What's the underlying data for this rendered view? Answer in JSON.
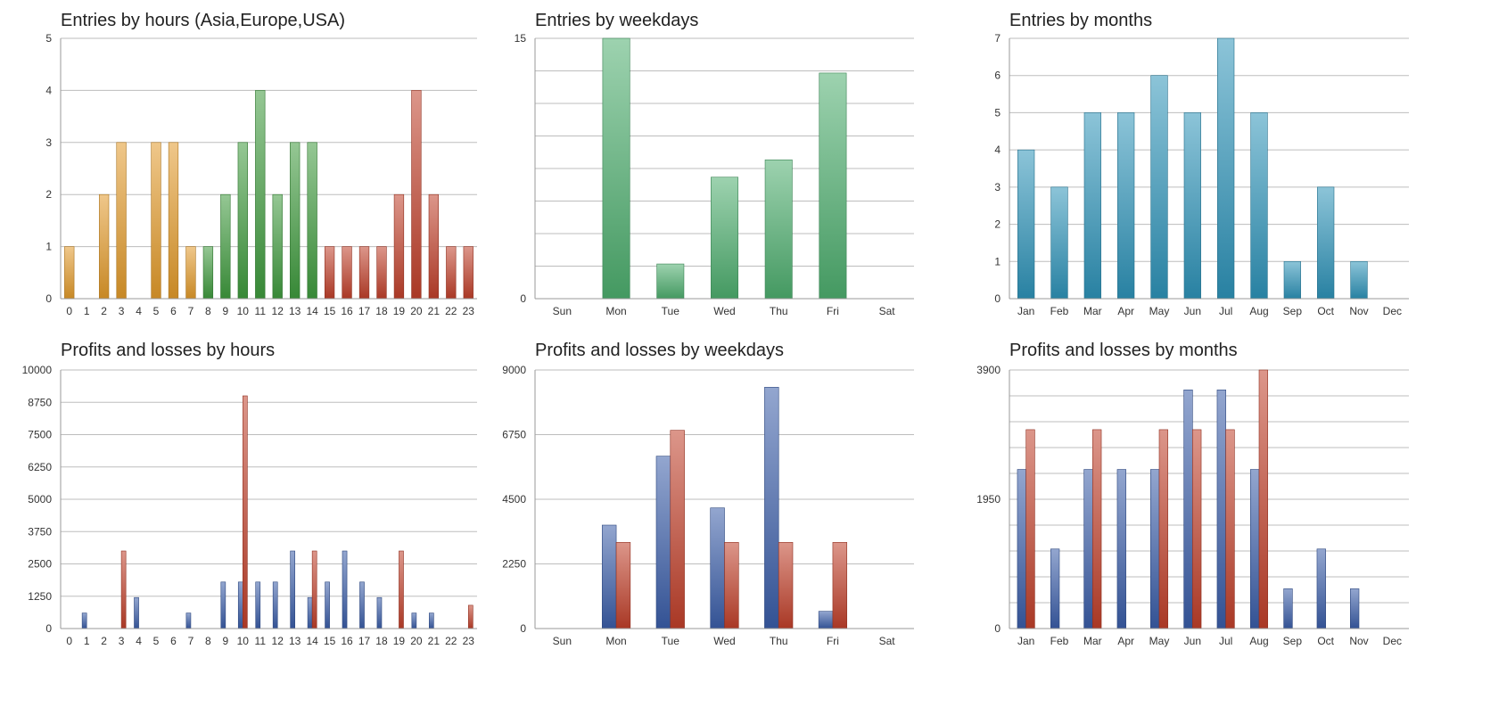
{
  "chart_data": [
    {
      "id": "hours-entries",
      "type": "bar",
      "title": "Entries by hours (Asia,Europe,USA)",
      "categories": [
        "0",
        "1",
        "2",
        "3",
        "4",
        "5",
        "6",
        "7",
        "8",
        "9",
        "10",
        "11",
        "12",
        "13",
        "14",
        "15",
        "16",
        "17",
        "18",
        "19",
        "20",
        "21",
        "22",
        "23"
      ],
      "series": [
        {
          "values": [
            1,
            0,
            2,
            3,
            0,
            3,
            3,
            1,
            1,
            2,
            3,
            4,
            2,
            3,
            3,
            1,
            1,
            1,
            1,
            2,
            4,
            2,
            1,
            1
          ]
        }
      ],
      "bar_colors_by_session": {
        "asia": {
          "range": [
            0,
            7
          ],
          "color": "#E29A2A"
        },
        "europe": {
          "range": [
            8,
            14
          ],
          "color": "#3F9A3D"
        },
        "usa": {
          "range": [
            15,
            23
          ],
          "color": "#C0402A"
        }
      },
      "ylim": [
        0,
        5
      ],
      "yticks": [
        0,
        1,
        2,
        3,
        4,
        5
      ],
      "xlabel": "",
      "ylabel": "",
      "grid": true
    },
    {
      "id": "weekday-entries",
      "type": "bar",
      "title": "Entries by weekdays",
      "categories": [
        "Sun",
        "Mon",
        "Tue",
        "Wed",
        "Thu",
        "Fri",
        "Sat"
      ],
      "series": [
        {
          "values": [
            0,
            15,
            2,
            7,
            8,
            13,
            0
          ]
        }
      ],
      "color": "#4DAE6E",
      "ylim": [
        0,
        15
      ],
      "yticks": [
        0,
        15
      ],
      "gridlines": 8,
      "xlabel": "",
      "ylabel": "",
      "grid": true
    },
    {
      "id": "month-entries",
      "type": "bar",
      "title": "Entries by months",
      "categories": [
        "Jan",
        "Feb",
        "Mar",
        "Apr",
        "May",
        "Jun",
        "Jul",
        "Aug",
        "Sep",
        "Oct",
        "Nov",
        "Dec"
      ],
      "series": [
        {
          "values": [
            4,
            3,
            5,
            5,
            6,
            5,
            7,
            5,
            1,
            3,
            1,
            0
          ]
        }
      ],
      "color": "#2E93B8",
      "ylim": [
        0,
        7
      ],
      "yticks": [
        0,
        1,
        2,
        3,
        4,
        5,
        6,
        7
      ],
      "xlabel": "",
      "ylabel": "",
      "grid": true
    },
    {
      "id": "hours-pnl",
      "type": "bar",
      "title": "Profits and losses by hours",
      "categories": [
        "0",
        "1",
        "2",
        "3",
        "4",
        "5",
        "6",
        "7",
        "8",
        "9",
        "10",
        "11",
        "12",
        "13",
        "14",
        "15",
        "16",
        "17",
        "18",
        "19",
        "20",
        "21",
        "22",
        "23"
      ],
      "series": [
        {
          "values": [
            0,
            600,
            0,
            0,
            1200,
            0,
            0,
            600,
            0,
            1800,
            1800,
            1800,
            1800,
            3000,
            1200,
            1800,
            3000,
            1800,
            1200,
            0,
            600,
            600,
            0,
            0
          ],
          "color": "#3A5DA8"
        },
        {
          "values": [
            0,
            0,
            0,
            3000,
            0,
            0,
            0,
            0,
            0,
            0,
            9000,
            0,
            0,
            0,
            3000,
            0,
            0,
            0,
            0,
            3000,
            0,
            0,
            0,
            900
          ],
          "color": "#C0402A"
        }
      ],
      "ylim": [
        0,
        10000
      ],
      "yticks": [
        0,
        1250,
        2500,
        3750,
        5000,
        6250,
        7500,
        8750,
        10000
      ],
      "xlabel": "",
      "ylabel": "",
      "grid": true
    },
    {
      "id": "weekday-pnl",
      "type": "bar",
      "title": "Profits and losses by weekdays",
      "categories": [
        "Sun",
        "Mon",
        "Tue",
        "Wed",
        "Thu",
        "Fri",
        "Sat"
      ],
      "series": [
        {
          "values": [
            0,
            3600,
            6000,
            4200,
            8400,
            600,
            0
          ],
          "color": "#3A5DA8"
        },
        {
          "values": [
            0,
            3000,
            6900,
            3000,
            3000,
            3000,
            0
          ],
          "color": "#C0402A"
        }
      ],
      "ylim": [
        0,
        9000
      ],
      "yticks": [
        0,
        2250,
        4500,
        6750,
        9000
      ],
      "xlabel": "",
      "ylabel": "",
      "grid": true
    },
    {
      "id": "month-pnl",
      "type": "bar",
      "title": "Profits and losses by months",
      "categories": [
        "Jan",
        "Feb",
        "Mar",
        "Apr",
        "May",
        "Jun",
        "Jul",
        "Aug",
        "Sep",
        "Oct",
        "Nov",
        "Dec"
      ],
      "series": [
        {
          "values": [
            2400,
            1200,
            2400,
            2400,
            2400,
            3600,
            3600,
            2400,
            600,
            1200,
            600,
            0
          ],
          "color": "#3A5DA8"
        },
        {
          "values": [
            3000,
            0,
            3000,
            0,
            3000,
            3000,
            3000,
            3900,
            0,
            0,
            0,
            0
          ],
          "color": "#C0402A"
        }
      ],
      "ylim": [
        0,
        3900
      ],
      "yticks": [
        0,
        1950,
        3900
      ],
      "gridlines": 10,
      "xlabel": "",
      "ylabel": "",
      "grid": true
    }
  ]
}
